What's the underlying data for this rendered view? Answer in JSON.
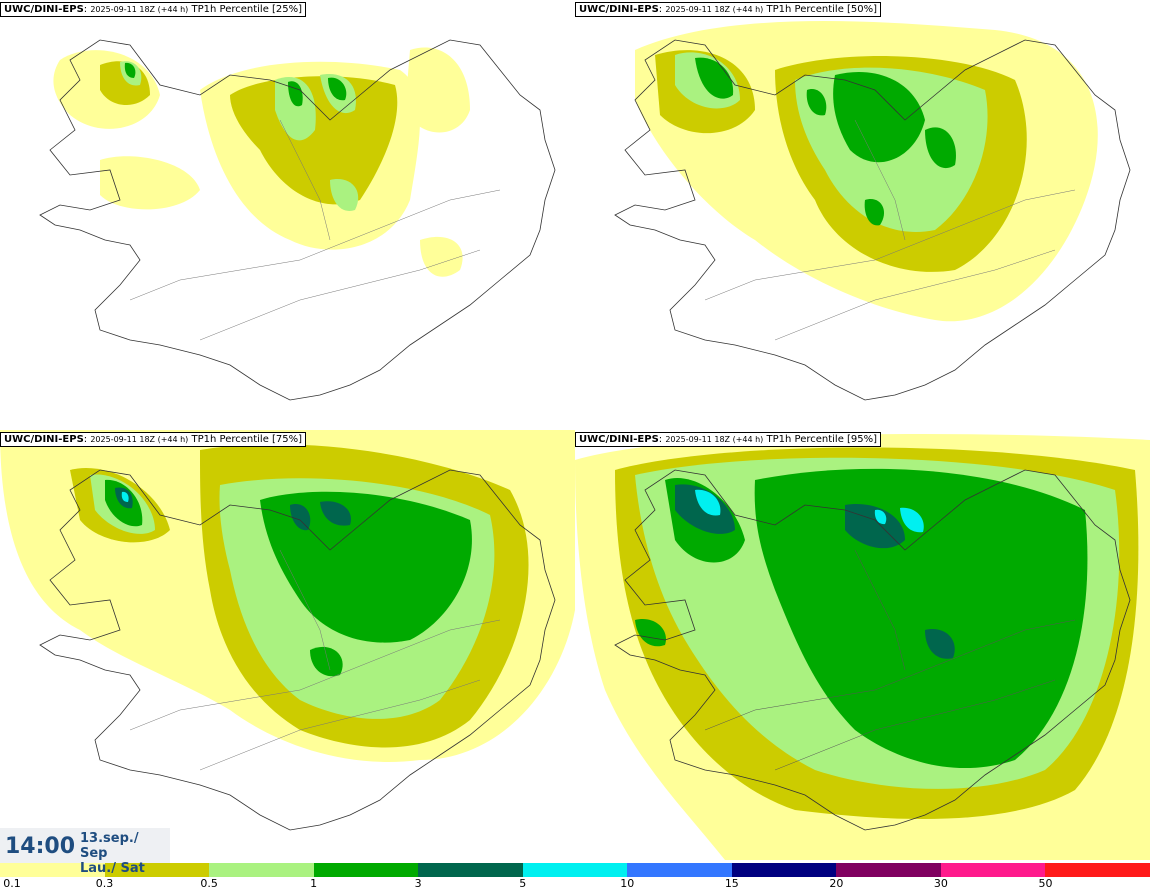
{
  "panels": [
    {
      "source": "UWC/DINI-EPS",
      "run": "2025-09-11 18Z (+44 h)",
      "title": "TP1h Percentile [25%]"
    },
    {
      "source": "UWC/DINI-EPS",
      "run": "2025-09-11 18Z (+44 h)",
      "title": "TP1h Percentile [50%]"
    },
    {
      "source": "UWC/DINI-EPS",
      "run": "2025-09-11 18Z (+44 h)",
      "title": "TP1h Percentile [75%]"
    },
    {
      "source": "UWC/DINI-EPS",
      "run": "2025-09-11 18Z (+44 h)",
      "title": "TP1h Percentile [95%]"
    }
  ],
  "time": {
    "clock": "14:00",
    "date_line": "13.sep./ Sep",
    "day_line": "Lau./ Sat"
  },
  "legend": {
    "colors": [
      "#ffff99",
      "#cccc00",
      "#aaf280",
      "#00aa00",
      "#00664d",
      "#00f0f0",
      "#3377ff",
      "#000080",
      "#800060",
      "#ff1a8c",
      "#ff1a1a"
    ],
    "ticks": [
      "0.1",
      "0.3",
      "0.5",
      "1",
      "3",
      "5",
      "10",
      "15",
      "20",
      "30",
      "50"
    ]
  }
}
